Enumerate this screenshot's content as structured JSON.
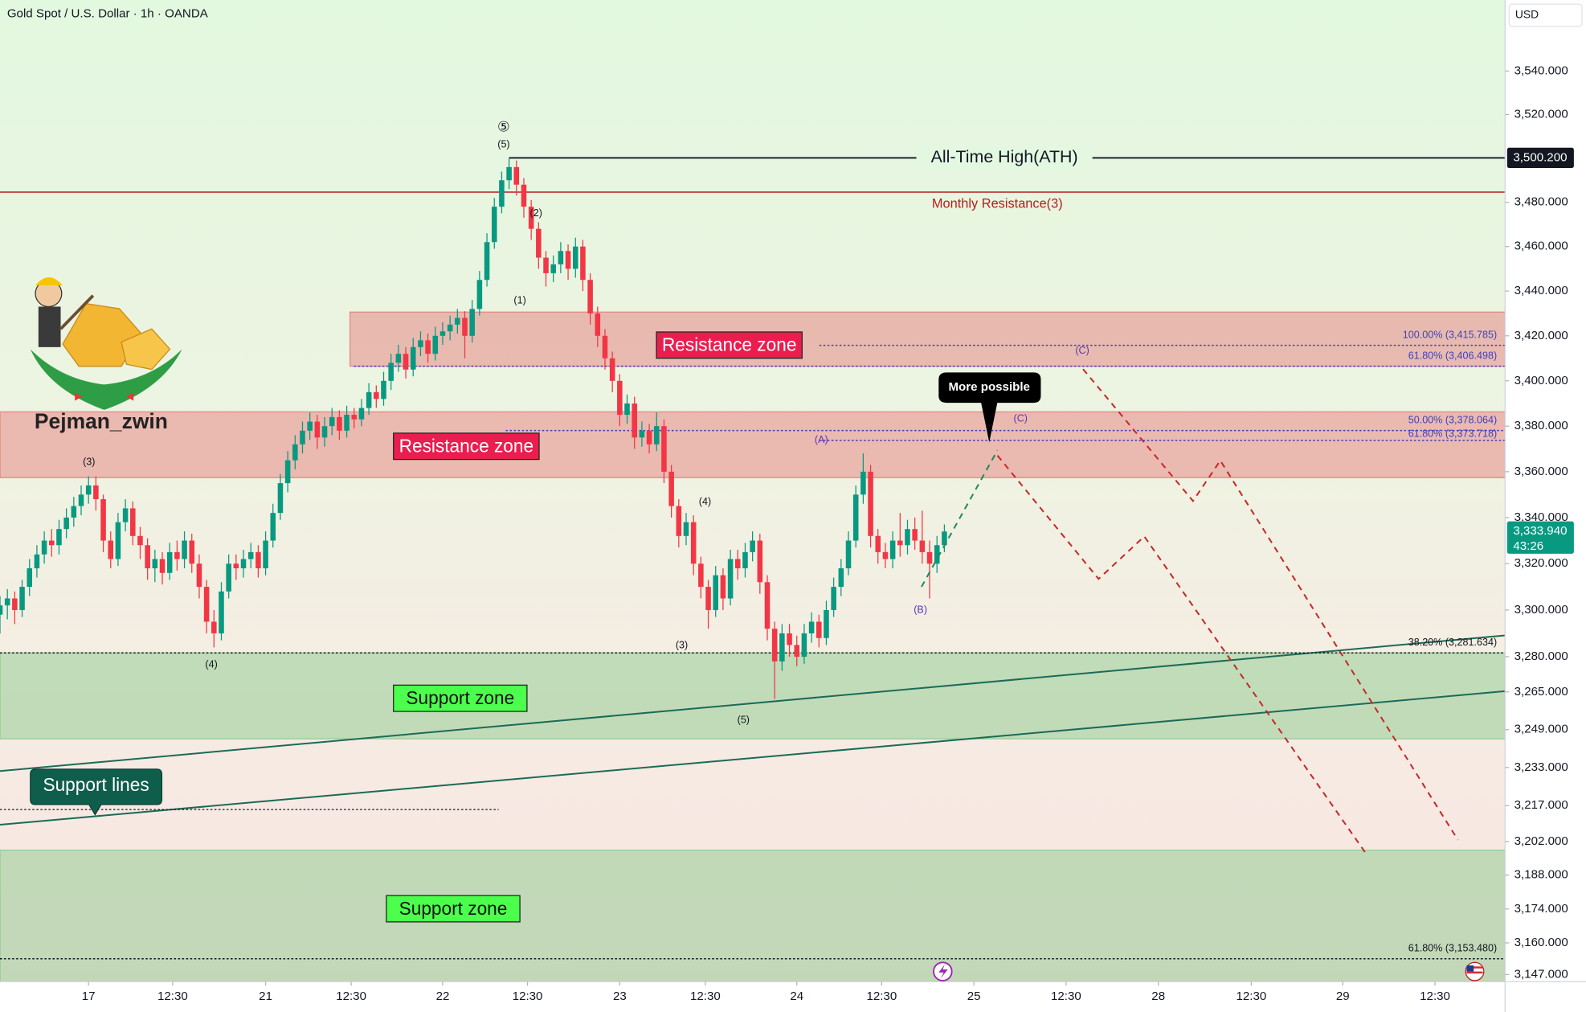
{
  "header": {
    "title": "Gold Spot / U.S. Dollar · 1h · OANDA",
    "currency": "USD",
    "author": "Pejman_zwin"
  },
  "chart_data": {
    "type": "candlestick",
    "log_scale": true,
    "grid": false,
    "xlim": [
      -12,
      192
    ],
    "ylim": [
      3144.1,
      3572.9
    ],
    "xticks": [
      {
        "value": 0,
        "label": "17"
      },
      {
        "value": 11.4,
        "label": "12:30"
      },
      {
        "value": 24,
        "label": "21"
      },
      {
        "value": 35.6,
        "label": "12:30"
      },
      {
        "value": 48,
        "label": "22"
      },
      {
        "value": 59.5,
        "label": "12:30"
      },
      {
        "value": 72,
        "label": "23"
      },
      {
        "value": 83.6,
        "label": "12:30"
      },
      {
        "value": 96,
        "label": "24"
      },
      {
        "value": 107.5,
        "label": "12:30"
      },
      {
        "value": 120,
        "label": "25"
      },
      {
        "value": 132.5,
        "label": "12:30"
      },
      {
        "value": 145,
        "label": "28"
      },
      {
        "value": 157.6,
        "label": "12:30"
      },
      {
        "value": 170,
        "label": "29"
      },
      {
        "value": 182.5,
        "label": "12:30"
      }
    ],
    "yticks": [
      {
        "value": 3540,
        "label": "3,540.000"
      },
      {
        "value": 3520,
        "label": "3,520.000"
      },
      {
        "value": 3480,
        "label": "3,480.000"
      },
      {
        "value": 3460,
        "label": "3,460.000"
      },
      {
        "value": 3440,
        "label": "3,440.000"
      },
      {
        "value": 3420,
        "label": "3,420.000"
      },
      {
        "value": 3400,
        "label": "3,400.000"
      },
      {
        "value": 3380,
        "label": "3,380.000"
      },
      {
        "value": 3360,
        "label": "3,360.000"
      },
      {
        "value": 3340,
        "label": "3,340.000"
      },
      {
        "value": 3320,
        "label": "3,320.000"
      },
      {
        "value": 3300,
        "label": "3,300.000"
      },
      {
        "value": 3280,
        "label": "3,280.000"
      },
      {
        "value": 3265,
        "label": "3,265.000"
      },
      {
        "value": 3249,
        "label": "3,249.000"
      },
      {
        "value": 3233,
        "label": "3,233.000"
      },
      {
        "value": 3217,
        "label": "3,217.000"
      },
      {
        "value": 3202,
        "label": "3,202.000"
      },
      {
        "value": 3188,
        "label": "3,188.000"
      },
      {
        "value": 3174,
        "label": "3,174.000"
      },
      {
        "value": 3160,
        "label": "3,160.000"
      },
      {
        "value": 3147,
        "label": "3,147.000"
      }
    ],
    "up_color": "#089981",
    "down_color": "#f23645",
    "x": [
      -12,
      -11,
      -10,
      -9,
      -8,
      -7,
      -6,
      -5,
      -4,
      -3,
      -2,
      -1,
      0,
      1,
      2,
      3,
      4,
      5,
      6,
      7,
      8,
      9,
      10,
      11,
      12,
      13,
      14,
      15,
      16,
      17,
      18,
      19,
      20,
      21,
      22,
      23,
      24,
      25,
      26,
      27,
      28,
      29,
      30,
      31,
      32,
      33,
      34,
      35,
      36,
      37,
      38,
      39,
      40,
      41,
      42,
      43,
      44,
      45,
      46,
      47,
      48,
      49,
      50,
      51,
      52,
      53,
      54,
      55,
      56,
      57,
      58,
      59,
      60,
      61,
      62,
      63,
      64,
      65,
      66,
      67,
      68,
      69,
      70,
      71,
      72,
      73,
      74,
      75,
      76,
      77,
      78,
      79,
      80,
      81,
      82,
      83,
      84,
      85,
      86,
      87,
      88,
      89,
      90,
      91,
      92,
      93,
      94,
      95,
      96,
      97,
      98,
      99,
      100,
      101,
      102,
      103,
      104,
      105,
      106,
      107,
      108,
      109,
      110,
      111,
      112,
      113,
      114,
      115,
      116
    ],
    "open": [
      3298,
      3302,
      3305,
      3300,
      3310,
      3318,
      3324,
      3330,
      3328,
      3335,
      3340,
      3345,
      3350,
      3354,
      3348,
      3330,
      3322,
      3338,
      3344,
      3332,
      3328,
      3318,
      3322,
      3316,
      3325,
      3322,
      3330,
      3320,
      3310,
      3295,
      3290,
      3308,
      3320,
      3318,
      3322,
      3325,
      3318,
      3330,
      3342,
      3355,
      3365,
      3372,
      3378,
      3382,
      3375,
      3380,
      3384,
      3378,
      3385,
      3383,
      3388,
      3395,
      3392,
      3400,
      3408,
      3412,
      3405,
      3415,
      3418,
      3412,
      3420,
      3422,
      3425,
      3428,
      3420,
      3432,
      3445,
      3462,
      3478,
      3490,
      3496,
      3488,
      3478,
      3468,
      3455,
      3448,
      3452,
      3458,
      3450,
      3460,
      3445,
      3430,
      3420,
      3410,
      3400,
      3385,
      3390,
      3375,
      3378,
      3372,
      3380,
      3360,
      3345,
      3332,
      3338,
      3320,
      3310,
      3300,
      3315,
      3305,
      3322,
      3318,
      3325,
      3330,
      3312,
      3292,
      3278,
      3290,
      3285,
      3280,
      3290,
      3295,
      3288,
      3300,
      3310,
      3318,
      3330,
      3350,
      3360,
      3332,
      3325,
      3322,
      3330,
      3328,
      3335,
      3330,
      3325,
      3320,
      3328
    ],
    "high": [
      3306,
      3309,
      3308,
      3313,
      3322,
      3328,
      3334,
      3335,
      3339,
      3344,
      3349,
      3354,
      3358,
      3358,
      3350,
      3334,
      3342,
      3348,
      3347,
      3336,
      3331,
      3326,
      3325,
      3329,
      3330,
      3334,
      3333,
      3324,
      3313,
      3300,
      3312,
      3324,
      3324,
      3326,
      3329,
      3328,
      3334,
      3346,
      3359,
      3369,
      3376,
      3382,
      3386,
      3385,
      3384,
      3388,
      3387,
      3389,
      3388,
      3392,
      3399,
      3398,
      3404,
      3412,
      3416,
      3415,
      3419,
      3422,
      3421,
      3424,
      3426,
      3429,
      3432,
      3431,
      3436,
      3449,
      3466,
      3482,
      3494,
      3500.2,
      3499,
      3491,
      3481,
      3471,
      3458,
      3456,
      3462,
      3461,
      3464,
      3463,
      3448,
      3433,
      3423,
      3413,
      3403,
      3394,
      3393,
      3382,
      3381,
      3386,
      3383,
      3363,
      3348,
      3342,
      3341,
      3323,
      3313,
      3319,
      3318,
      3326,
      3326,
      3329,
      3334,
      3333,
      3315,
      3295,
      3294,
      3294,
      3289,
      3294,
      3299,
      3298,
      3304,
      3314,
      3322,
      3334,
      3354,
      3368,
      3363,
      3335,
      3329,
      3334,
      3342,
      3339,
      3340,
      3343,
      3330,
      3332,
      3337
    ],
    "low": [
      3290,
      3296,
      3294,
      3297,
      3306,
      3314,
      3320,
      3323,
      3324,
      3331,
      3336,
      3341,
      3346,
      3343,
      3325,
      3318,
      3319,
      3334,
      3328,
      3322,
      3313,
      3312,
      3311,
      3313,
      3317,
      3318,
      3316,
      3305,
      3290,
      3284,
      3287,
      3305,
      3313,
      3314,
      3318,
      3314,
      3315,
      3327,
      3339,
      3351,
      3361,
      3368,
      3374,
      3370,
      3371,
      3376,
      3374,
      3375,
      3379,
      3380,
      3385,
      3388,
      3389,
      3396,
      3404,
      3401,
      3402,
      3411,
      3408,
      3409,
      3416,
      3418,
      3421,
      3410,
      3417,
      3429,
      3442,
      3459,
      3475,
      3486,
      3483,
      3473,
      3463,
      3450,
      3442,
      3444,
      3448,
      3445,
      3446,
      3440,
      3425,
      3415,
      3405,
      3395,
      3380,
      3381,
      3370,
      3371,
      3368,
      3369,
      3355,
      3340,
      3327,
      3328,
      3315,
      3305,
      3292,
      3297,
      3300,
      3302,
      3313,
      3314,
      3321,
      3307,
      3287,
      3262,
      3274,
      3280,
      3276,
      3277,
      3286,
      3284,
      3285,
      3297,
      3306,
      3315,
      3327,
      3346,
      3327,
      3320,
      3318,
      3318,
      3323,
      3324,
      3326,
      3320,
      3305,
      3316,
      3325
    ],
    "close": [
      3302,
      3305,
      3300,
      3310,
      3318,
      3324,
      3330,
      3328,
      3335,
      3340,
      3345,
      3350,
      3354,
      3348,
      3330,
      3322,
      3338,
      3344,
      3332,
      3328,
      3318,
      3322,
      3316,
      3325,
      3322,
      3330,
      3320,
      3310,
      3295,
      3290,
      3308,
      3320,
      3318,
      3322,
      3325,
      3318,
      3330,
      3342,
      3355,
      3365,
      3372,
      3378,
      3382,
      3375,
      3380,
      3384,
      3378,
      3385,
      3383,
      3388,
      3395,
      3392,
      3400,
      3408,
      3412,
      3405,
      3415,
      3418,
      3412,
      3420,
      3422,
      3425,
      3428,
      3420,
      3432,
      3445,
      3462,
      3478,
      3490,
      3496,
      3488,
      3478,
      3468,
      3455,
      3448,
      3452,
      3458,
      3450,
      3460,
      3445,
      3430,
      3420,
      3410,
      3400,
      3385,
      3390,
      3375,
      3378,
      3372,
      3380,
      3360,
      3345,
      3332,
      3338,
      3320,
      3310,
      3300,
      3315,
      3305,
      3322,
      3318,
      3325,
      3330,
      3312,
      3292,
      3278,
      3290,
      3285,
      3280,
      3290,
      3295,
      3288,
      3300,
      3310,
      3318,
      3330,
      3350,
      3360,
      3332,
      3325,
      3322,
      3330,
      3328,
      3335,
      3330,
      3325,
      3320,
      3328,
      3333.94
    ],
    "levels": [
      {
        "name": "All-Time High(ATH)",
        "value": 3500.2,
        "color": "#131722"
      },
      {
        "name": "Monthly Resistance(3)",
        "value": 3484.6,
        "color": "#b71c1c"
      }
    ],
    "price_badges": [
      {
        "value": 3500.2,
        "label": "3,500.200",
        "color": "#131722"
      },
      {
        "value": 3333.94,
        "label": "3,333.940",
        "countdown": "43:26",
        "color": "#089981"
      }
    ],
    "fib_levels": [
      {
        "value": 3415.785,
        "label": "100.00% (3,415.785)",
        "color": "#3f3fbf"
      },
      {
        "value": 3406.498,
        "label": "61.80% (3,406.498)",
        "color": "#3f3fbf"
      },
      {
        "value": 3378.064,
        "label": "50.00% (3,378.064)",
        "color": "#3f3fbf"
      },
      {
        "value": 3373.718,
        "label": "61.80% (3,373.718)",
        "color": "#3f3fbf"
      },
      {
        "value": 3281.634,
        "label": "38.20% (3,281.634)",
        "color": "#131722"
      },
      {
        "value": 3153.48,
        "label": "61.80% (3,153.480)",
        "color": "#131722"
      }
    ],
    "zones": [
      {
        "label": "Resistance zone",
        "from": 3406.5,
        "to": 3430.6,
        "color": "#e57373"
      },
      {
        "label": "Resistance zone",
        "from": 3357.4,
        "to": 3386.3,
        "color": "#e57373"
      },
      {
        "label": "Support zone",
        "from": 3245.1,
        "to": 3281.6,
        "color": "#81c784"
      },
      {
        "label": "Support zone",
        "from": 3144.1,
        "to": 3198.4,
        "color": "#81c784"
      }
    ],
    "trendlines": [
      {
        "x": [
          -12,
          192
        ],
        "y": [
          3231.5,
          3289.1
        ],
        "color": "#1b6b57"
      },
      {
        "x": [
          -12,
          192
        ],
        "y": [
          3209.0,
          3265.3
        ],
        "color": "#1b6b57"
      }
    ],
    "trendline_label": "Support lines",
    "projections": [
      {
        "color": "#1b8a5a",
        "x": [
          112.9,
          123.2
        ],
        "y": [
          3310,
          3369.4
        ]
      },
      {
        "color": "#c62828",
        "x": [
          123.2,
          136.9,
          143.1,
          173.3
        ],
        "y": [
          3367.1,
          3313.4,
          3331.8,
          3196.3
        ]
      },
      {
        "color": "#c62828",
        "x": [
          134.8,
          149.7,
          153.4,
          185.6
        ],
        "y": [
          3405.2,
          3347.2,
          3364.9,
          3202.7
        ]
      }
    ],
    "callout": "More possible",
    "wave_labels": [
      "⑤",
      "(5)",
      "(2)",
      "(1)",
      "(3)",
      "(4)",
      "(4)",
      "(3)",
      "(5)",
      "(A)",
      "(B)",
      "(C)",
      "(C)"
    ]
  }
}
